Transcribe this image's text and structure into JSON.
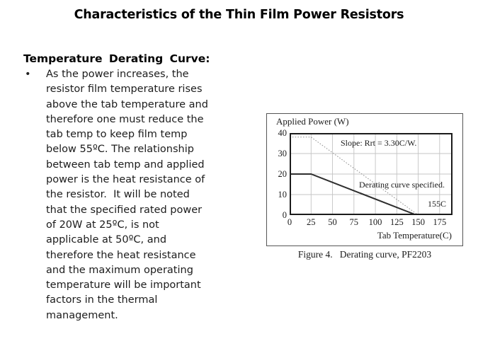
{
  "title": "Characteristics of the Thin Film Power Resistors",
  "section": {
    "heading": "Temperature Derating Curve:",
    "bullet_char": "•",
    "bullet_lines": [
      "As the power increases, the",
      "resistor film temperature rises",
      "above the tab temperature and",
      "therefore one must reduce the",
      "tab temp to keep film temp",
      "below 55ºC. The relationship",
      "between tab temp and applied",
      "power is the heat resistance of",
      "the resistor.  It will be noted",
      "that the specified rated power",
      "of 20W at 25ºC, is not",
      "applicable at 50ºC, and",
      "therefore the heat resistance",
      "and the maximum operating",
      "temperature will be important",
      "factors in the thermal",
      "management."
    ]
  },
  "figure": {
    "caption": "Figure 4.   Derating curve, PF2203"
  },
  "chart_data": {
    "type": "line",
    "title": "",
    "x_axis_label": "Tab Temperature(C)",
    "y_axis_label": "Applied Power (W)",
    "x_ticks": [
      0,
      25,
      50,
      75,
      100,
      125,
      150,
      175
    ],
    "y_ticks": [
      40,
      30,
      20,
      10,
      0
    ],
    "xlim": [
      0,
      190
    ],
    "ylim": [
      0,
      40
    ],
    "grid": true,
    "legend": "none",
    "annotations": {
      "slope": "Slope: Rrt = 3.30C/W.",
      "curve": "Derating curve specified.",
      "temp": "155C"
    },
    "colors": {
      "grid": "#c4c4c4",
      "axis": "#1b1b1b",
      "dotted_line": "#8f8f8f",
      "solid_line": "#2e2e2e"
    },
    "series": [
      {
        "name": "thermal-slope-line",
        "style": "dotted",
        "points": [
          [
            0,
            38
          ],
          [
            25,
            38
          ],
          [
            150,
            0
          ]
        ]
      },
      {
        "name": "derating-curve-specified",
        "style": "solid",
        "points": [
          [
            0,
            20
          ],
          [
            25,
            20
          ],
          [
            148,
            0
          ]
        ]
      }
    ]
  }
}
